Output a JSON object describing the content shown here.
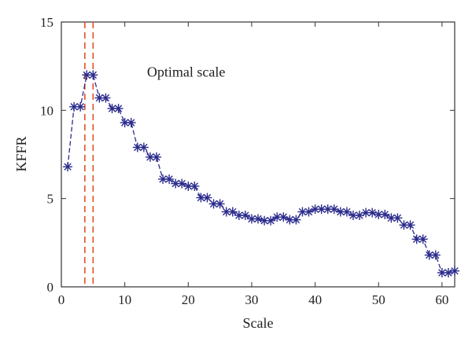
{
  "chart_data": {
    "type": "line",
    "xlabel": "Scale",
    "ylabel": "KFFR",
    "xlim": [
      0,
      62
    ],
    "ylim": [
      0,
      15
    ],
    "xticks": [
      0,
      10,
      20,
      30,
      40,
      50,
      60
    ],
    "yticks": [
      0,
      5,
      10,
      15
    ],
    "grid": false,
    "annotations": [
      {
        "text": "Optimal scale",
        "x": 13.5,
        "y": 11.9
      }
    ],
    "reference_lines": [
      {
        "orientation": "vertical",
        "x": 3.7,
        "color": "#e2502a",
        "style": "dashed"
      },
      {
        "orientation": "vertical",
        "x": 5.0,
        "color": "#e2502a",
        "style": "dashed"
      }
    ],
    "series": [
      {
        "color": "#2b2b8c",
        "marker": "asterisk",
        "x": [
          1,
          2,
          3,
          4,
          5,
          6,
          7,
          8,
          9,
          10,
          11,
          12,
          13,
          14,
          15,
          16,
          17,
          18,
          19,
          20,
          21,
          22,
          23,
          24,
          25,
          26,
          27,
          28,
          29,
          30,
          31,
          32,
          33,
          34,
          35,
          36,
          37,
          38,
          39,
          40,
          41,
          42,
          43,
          44,
          45,
          46,
          47,
          48,
          49,
          50,
          51,
          52,
          53,
          54,
          55,
          56,
          57,
          58,
          59,
          60,
          61,
          62
        ],
        "values": [
          6.8,
          10.2,
          10.2,
          12.0,
          12.0,
          10.7,
          10.7,
          10.1,
          10.1,
          9.3,
          9.3,
          7.9,
          7.9,
          7.35,
          7.35,
          6.1,
          6.1,
          5.85,
          5.85,
          5.7,
          5.7,
          5.05,
          5.05,
          4.7,
          4.7,
          4.25,
          4.25,
          4.05,
          4.05,
          3.85,
          3.85,
          3.75,
          3.75,
          3.95,
          3.95,
          3.8,
          3.8,
          4.25,
          4.25,
          4.4,
          4.4,
          4.4,
          4.4,
          4.25,
          4.25,
          4.05,
          4.05,
          4.2,
          4.2,
          4.1,
          4.1,
          3.9,
          3.9,
          3.5,
          3.5,
          2.7,
          2.7,
          1.8,
          1.8,
          0.8,
          0.8,
          0.9
        ]
      }
    ]
  }
}
